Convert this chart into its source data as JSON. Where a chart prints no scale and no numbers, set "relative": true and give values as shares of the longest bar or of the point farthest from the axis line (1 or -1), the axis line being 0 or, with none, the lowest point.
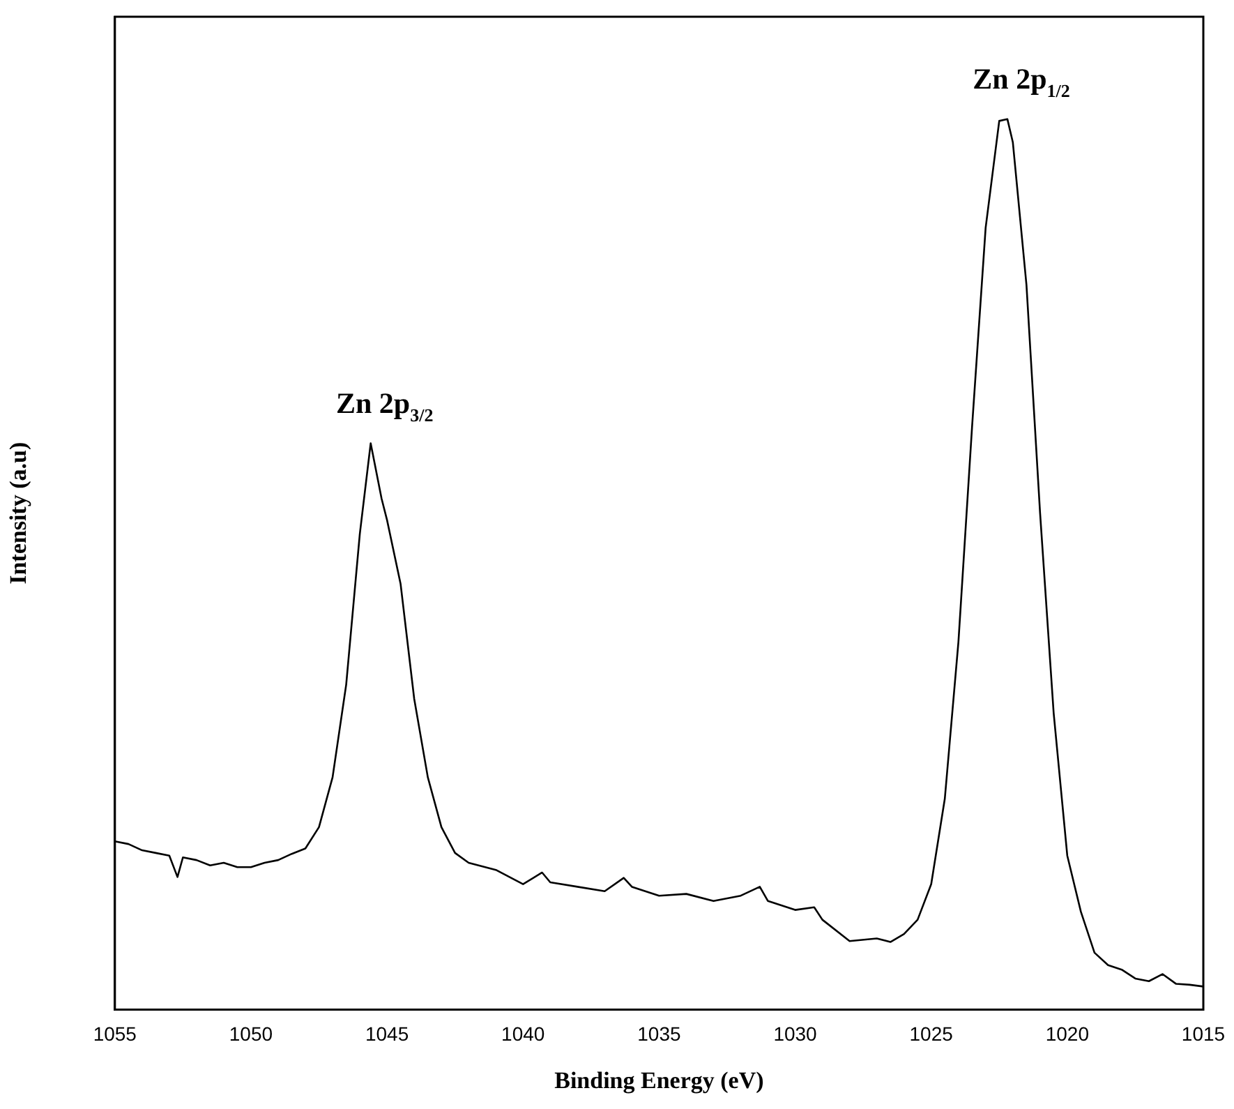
{
  "chart_data": {
    "type": "line",
    "xlabel": "Binding Energy (eV)",
    "ylabel": "Intensity (a.u)",
    "relative": true,
    "xlim": [
      1055,
      1015
    ],
    "xticks": [
      1055,
      1050,
      1045,
      1040,
      1035,
      1030,
      1025,
      1020,
      1015
    ],
    "grid": false,
    "legend": false,
    "marker": "none",
    "line_style": "solid",
    "series": [
      {
        "color": "#000000",
        "x": [
          1055,
          1054.5,
          1054,
          1053.5,
          1053,
          1052.7,
          1052.5,
          1052,
          1051.5,
          1051,
          1050.5,
          1050,
          1049.5,
          1049,
          1048.5,
          1048,
          1047.5,
          1047,
          1046.5,
          1046,
          1045.6,
          1045.2,
          1045,
          1044.5,
          1044,
          1043.5,
          1043,
          1042.5,
          1042,
          1041,
          1040,
          1039.3,
          1039,
          1038,
          1037,
          1036.3,
          1036,
          1035,
          1034,
          1033,
          1032,
          1031.3,
          1031,
          1030,
          1029.3,
          1029,
          1028,
          1027,
          1026.5,
          1026,
          1025.5,
          1025,
          1024.5,
          1024,
          1023.5,
          1023,
          1022.5,
          1022.2,
          1022,
          1021.5,
          1021,
          1020.5,
          1020,
          1019.5,
          1019,
          1018.5,
          1018,
          1017.5,
          1017,
          1016.5,
          1016,
          1015.5,
          1015
        ],
        "values": [
          0.189,
          0.186,
          0.179,
          0.176,
          0.173,
          0.149,
          0.171,
          0.168,
          0.162,
          0.165,
          0.16,
          0.16,
          0.165,
          0.168,
          0.175,
          0.181,
          0.205,
          0.261,
          0.365,
          0.534,
          0.636,
          0.574,
          0.55,
          0.478,
          0.349,
          0.261,
          0.205,
          0.176,
          0.165,
          0.157,
          0.141,
          0.154,
          0.143,
          0.138,
          0.133,
          0.148,
          0.138,
          0.128,
          0.13,
          0.122,
          0.128,
          0.138,
          0.122,
          0.112,
          0.115,
          0.101,
          0.077,
          0.08,
          0.076,
          0.085,
          0.101,
          0.141,
          0.237,
          0.413,
          0.654,
          0.878,
          0.998,
          1,
          0.974,
          0.814,
          0.558,
          0.333,
          0.173,
          0.11,
          0.064,
          0.05,
          0.045,
          0.035,
          0.032,
          0.04,
          0.029,
          0.028,
          0.026
        ]
      }
    ],
    "annotations": [
      {
        "text": "Zn 2p$_{3/2}$",
        "x": 1045.6,
        "y": 0.636
      },
      {
        "text": "Zn 2p$_{1/2}$",
        "x": 1022.2,
        "y": 1
      }
    ]
  }
}
